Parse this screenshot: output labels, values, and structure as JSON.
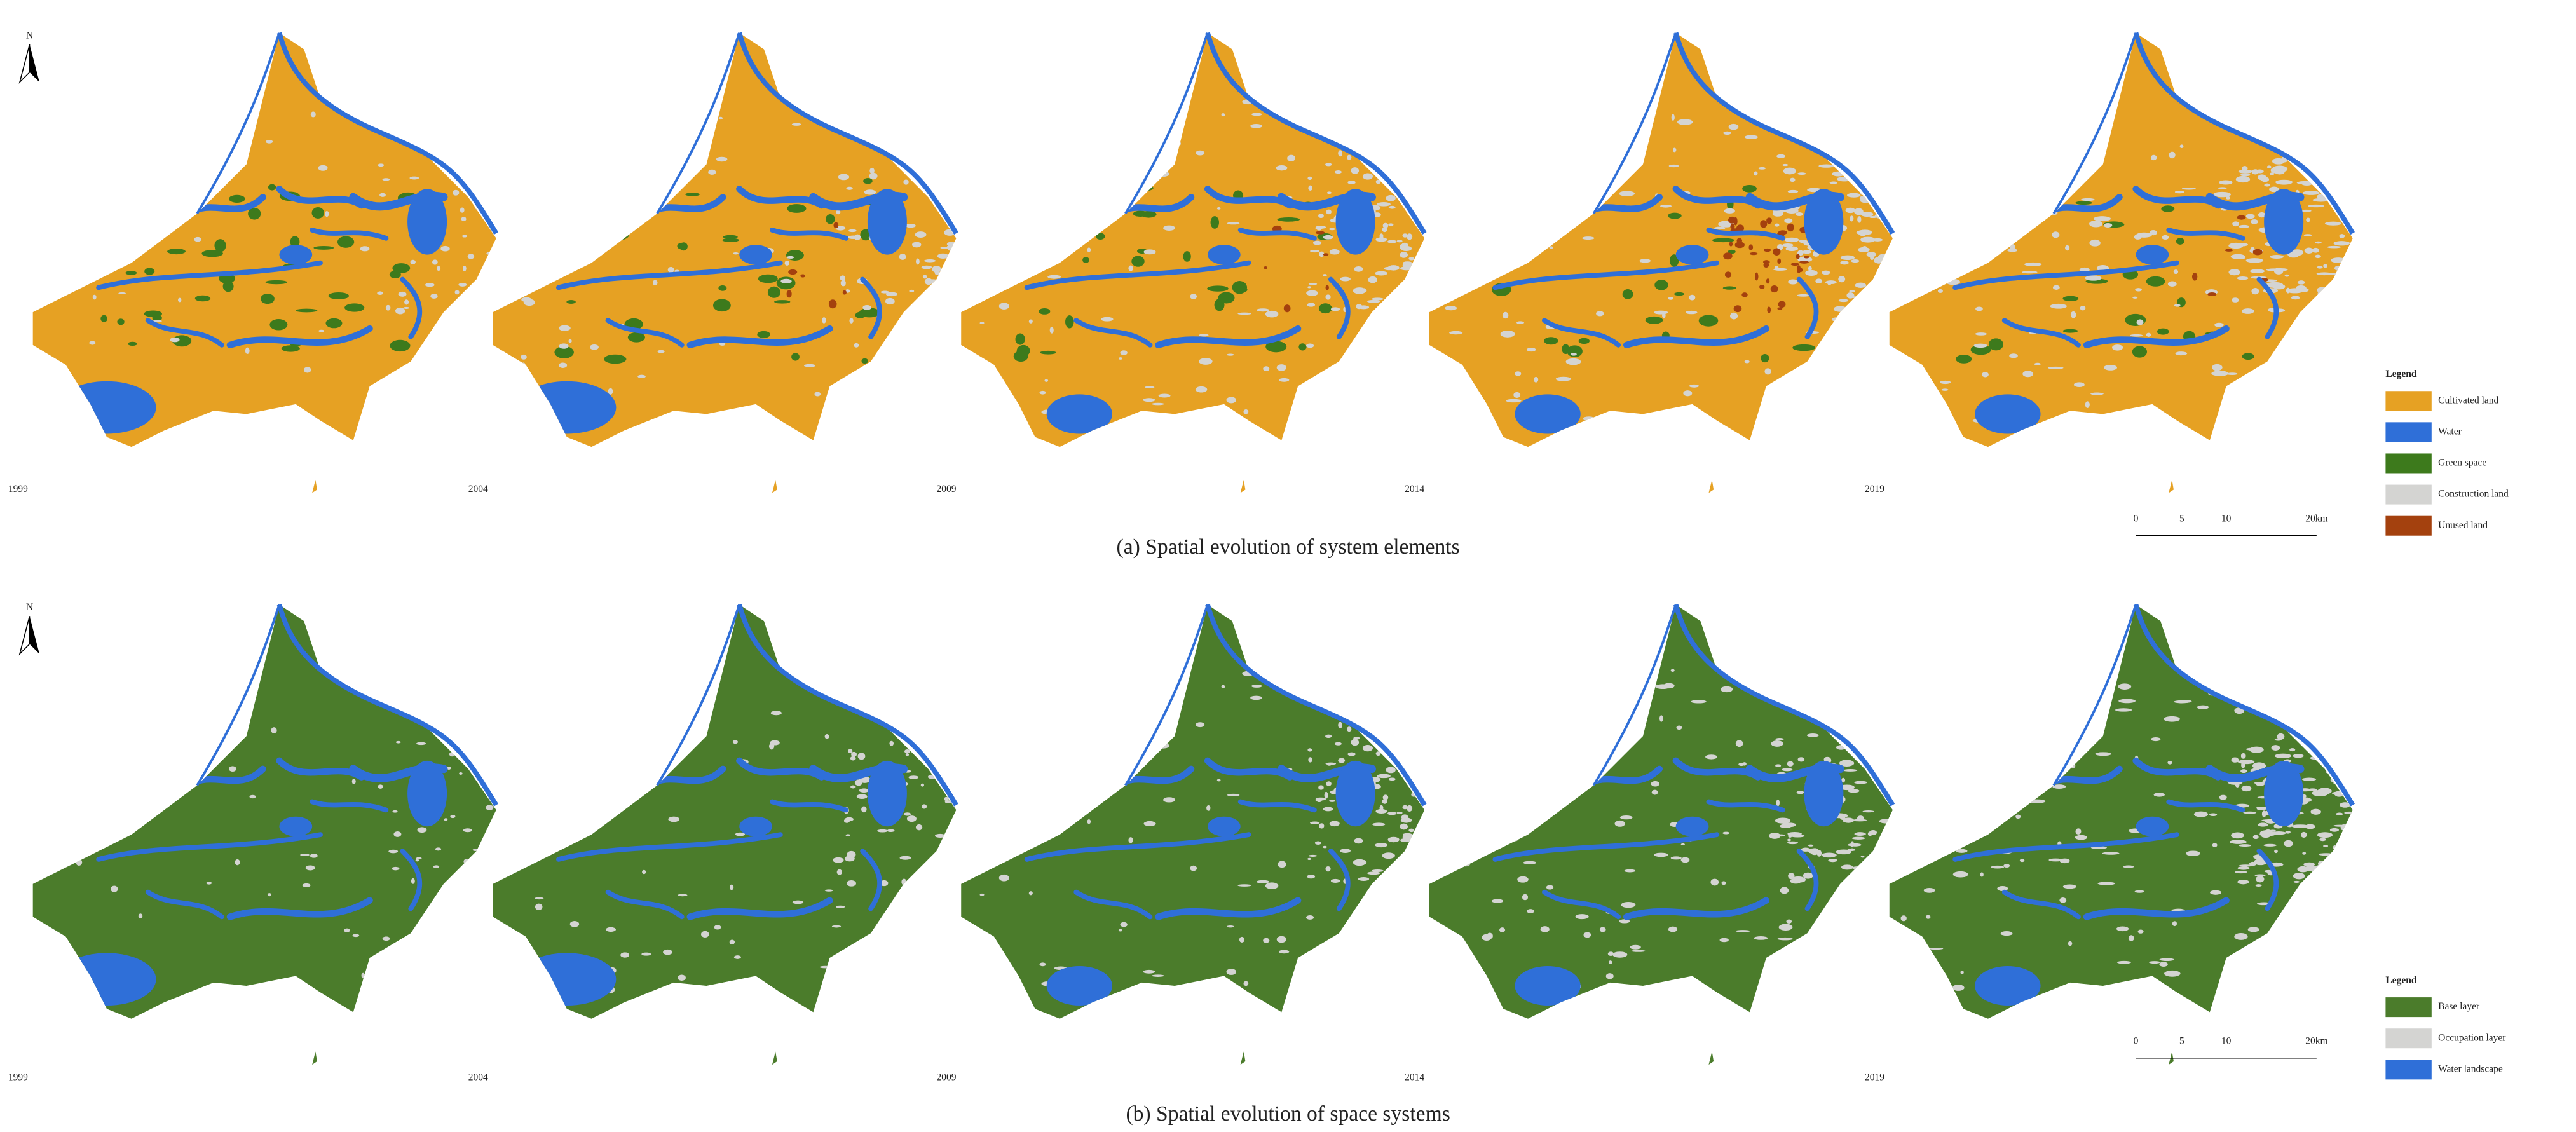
{
  "north_label": "N",
  "panels": [
    {
      "caption": "(a) Spatial evolution of system elements",
      "years": [
        "1999",
        "2004",
        "2009",
        "2014",
        "2019"
      ],
      "legend": {
        "title": "Legend",
        "items": [
          {
            "label": "Cultivated land",
            "color": "#e6a123"
          },
          {
            "label": "Water",
            "color": "#2f6fd8"
          },
          {
            "label": "Green space",
            "color": "#3d7a1c"
          },
          {
            "label": "Construction land",
            "color": "#d4d4d2"
          },
          {
            "label": "Unused land",
            "color": "#a4410e"
          }
        ]
      },
      "scale_bar": [
        "0",
        "5",
        "10",
        "20km"
      ]
    },
    {
      "caption": "(b) Spatial evolution of space systems",
      "years": [
        "1999",
        "2004",
        "2009",
        "2014",
        "2019"
      ],
      "legend": {
        "title": "Legend",
        "items": [
          {
            "label": "Base layer",
            "color": "#4b7c2b"
          },
          {
            "label": "Occupation layer",
            "color": "#d4d4d2"
          },
          {
            "label": "Water landscape",
            "color": "#2f6fd8"
          }
        ]
      },
      "scale_bar": [
        "0",
        "5",
        "10",
        "20km"
      ]
    }
  ]
}
